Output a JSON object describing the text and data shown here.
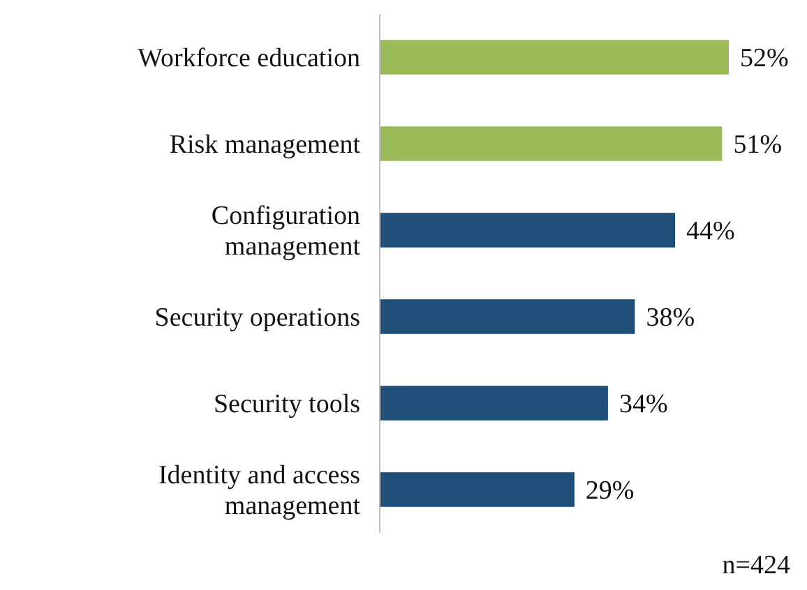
{
  "chart_data": {
    "type": "bar",
    "orientation": "horizontal",
    "categories": [
      "Workforce education",
      "Risk management",
      "Configuration management",
      "Security operations",
      "Security tools",
      "Identity and access management"
    ],
    "values": [
      52,
      51,
      44,
      38,
      34,
      29
    ],
    "colors": [
      "#9bbb59",
      "#9bbb59",
      "#1f4e79",
      "#1f4e79",
      "#1f4e79",
      "#1f4e79"
    ],
    "value_labels": [
      "52%",
      "51%",
      "44%",
      "38%",
      "34%",
      "29%"
    ],
    "annotations": [
      "n=424"
    ]
  }
}
